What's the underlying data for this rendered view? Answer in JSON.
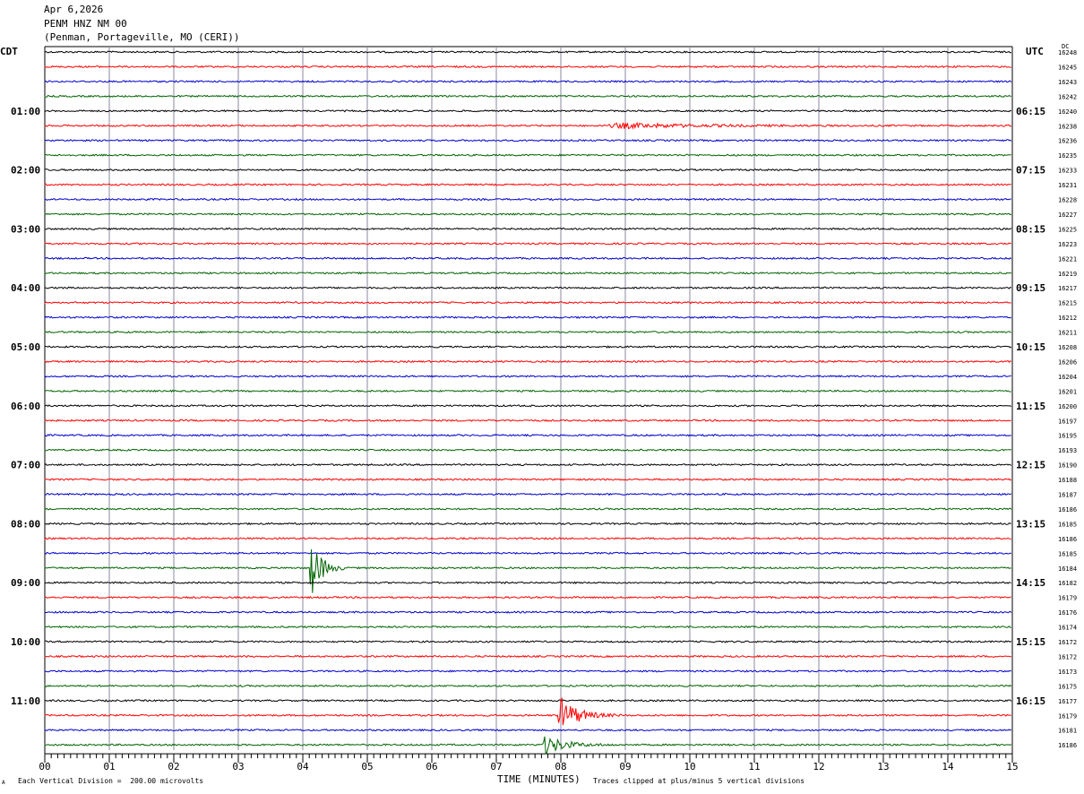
{
  "header": {
    "date": "Apr 6,2026",
    "station": "PENM HNZ NM 00",
    "location": "(Penman, Portageville, MO (CERI))"
  },
  "left_zone": "CDT",
  "right_zone": "UTC",
  "dc_label": "DC",
  "footer": {
    "scale": "Each Vertical Division =  200.00 microvolts",
    "xlabel": "TIME (MINUTES)",
    "clip": "Traces clipped at plus/minus 5 vertical divisions",
    "mark": "A"
  },
  "colors": {
    "cycle": [
      "#000000",
      "#ff0000",
      "#0000cc",
      "#006400"
    ],
    "grid": "#8a8aa0"
  },
  "chart_data": {
    "type": "line",
    "title": "PENM HNZ NM 00",
    "xlabel": "TIME (MINUTES)",
    "xlim": [
      0,
      15
    ],
    "x_ticks": [
      "00",
      "01",
      "02",
      "03",
      "04",
      "05",
      "06",
      "07",
      "08",
      "09",
      "10",
      "11",
      "12",
      "13",
      "14",
      "15"
    ],
    "left_time_labels": [
      "01:00",
      "02:00",
      "03:00",
      "04:00",
      "05:00",
      "06:00",
      "07:00",
      "08:00",
      "09:00",
      "10:00",
      "11:00"
    ],
    "right_time_labels": [
      "06:15",
      "07:15",
      "08:15",
      "09:15",
      "10:15",
      "11:15",
      "12:15",
      "13:15",
      "14:15",
      "15:15",
      "16:15"
    ],
    "dc_offsets": [
      "16248",
      "16245",
      "16243",
      "16242",
      "16240",
      "16238",
      "16236",
      "16235",
      "16233",
      "16231",
      "16228",
      "16227",
      "16225",
      "16223",
      "16221",
      "16219",
      "16217",
      "16215",
      "16212",
      "16211",
      "16208",
      "16206",
      "16204",
      "16201",
      "16200",
      "16197",
      "16195",
      "16193",
      "16190",
      "16188",
      "16187",
      "16186",
      "16185",
      "16186",
      "16185",
      "16184",
      "16182",
      "16179",
      "16176",
      "16174",
      "16172",
      "16172",
      "16173",
      "16175",
      "16177",
      "16179",
      "16181",
      "16186"
    ],
    "events": [
      {
        "trace": 35,
        "start_min": 4.1,
        "duration_min": 0.6,
        "amplitude_div": 5
      },
      {
        "trace": 45,
        "start_min": 7.95,
        "duration_min": 1.0,
        "amplitude_div": 3
      },
      {
        "trace": 47,
        "start_min": 7.7,
        "duration_min": 1.2,
        "amplitude_div": 1.5
      },
      {
        "trace": 5,
        "start_min": 8.7,
        "duration_min": 4.5,
        "amplitude_div": 0.4
      }
    ]
  }
}
